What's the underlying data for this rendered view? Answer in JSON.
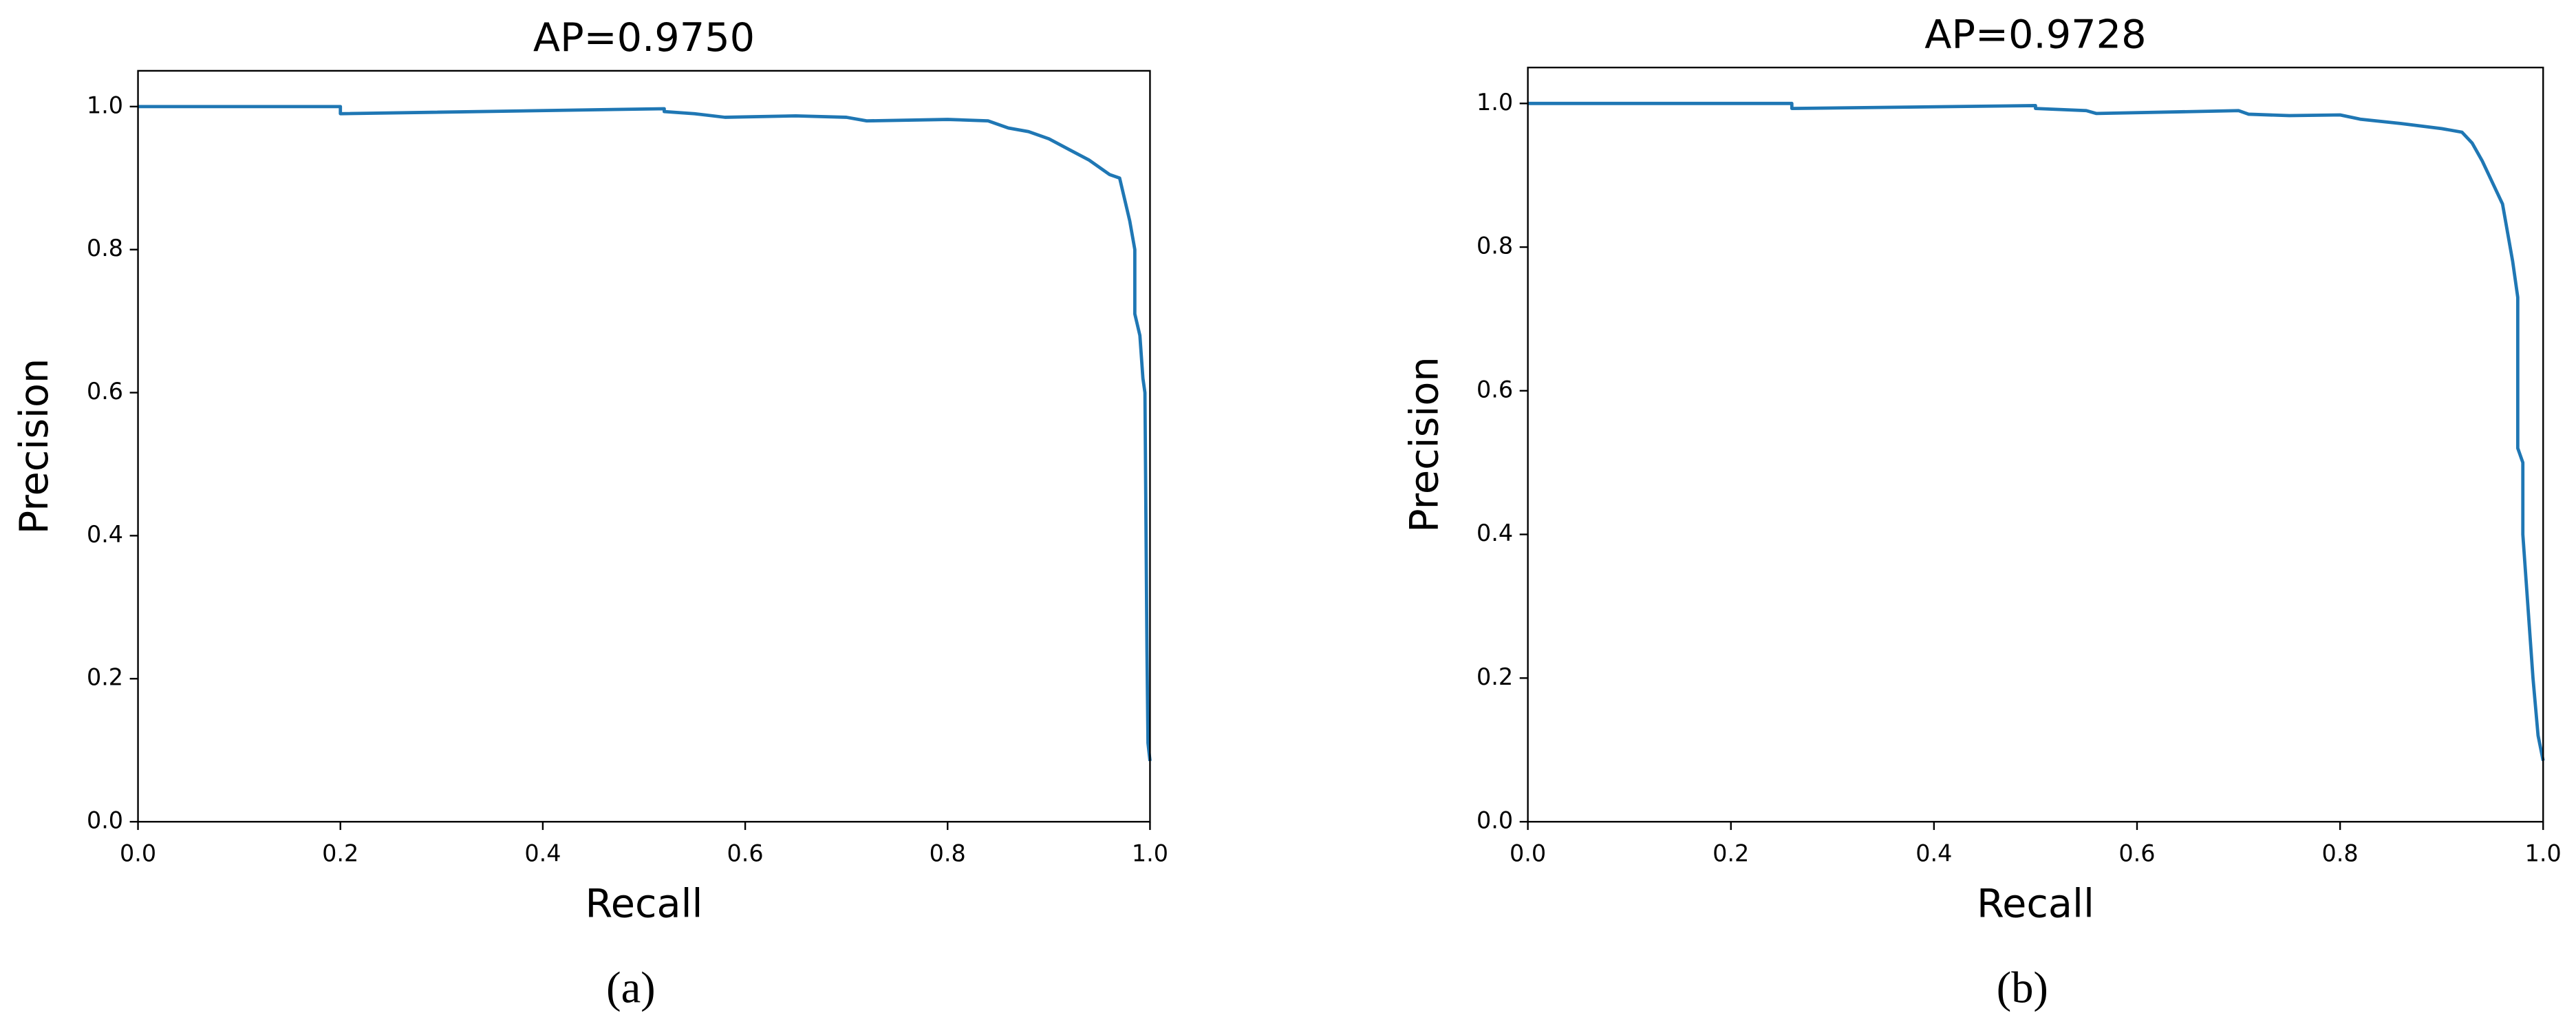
{
  "chart_data": [
    {
      "type": "line",
      "title": "AP=0.9750",
      "x_label": "Recall",
      "y_label": "Precision",
      "panel_label": "(a)",
      "xlim": [
        0,
        1
      ],
      "ylim": [
        0,
        1.05
      ],
      "xticks": [
        {
          "value": 0,
          "label": "0.0"
        },
        0.2,
        0.4,
        0.6,
        0.8,
        {
          "value": 1,
          "label": "1.0"
        }
      ],
      "yticks": [
        {
          "value": 0,
          "label": "0.0"
        },
        0.2,
        0.4,
        0.6,
        0.8,
        {
          "value": 1,
          "label": "1.0"
        }
      ],
      "series": [
        {
          "color": "#1f77b4",
          "x": [
            0,
            0.2,
            0.2,
            0.52,
            0.52,
            0.55,
            0.58,
            0.65,
            0.7,
            0.72,
            0.8,
            0.84,
            0.86,
            0.88,
            0.9,
            0.92,
            0.94,
            0.96,
            0.97,
            0.975,
            0.98,
            0.985,
            0.985,
            0.99,
            0.993,
            0.995,
            0.997,
            0.998,
            1.0
          ],
          "values": [
            1.0,
            1.0,
            0.99,
            0.997,
            0.993,
            0.99,
            0.985,
            0.987,
            0.985,
            0.98,
            0.982,
            0.98,
            0.97,
            0.965,
            0.955,
            0.94,
            0.925,
            0.905,
            0.9,
            0.87,
            0.84,
            0.8,
            0.71,
            0.68,
            0.62,
            0.6,
            0.24,
            0.11,
            0.085
          ]
        }
      ]
    },
    {
      "type": "line",
      "title": "AP=0.9728",
      "x_label": "Recall",
      "y_label": "Precision",
      "panel_label": "(b)",
      "xlim": [
        0,
        1
      ],
      "ylim": [
        0,
        1.05
      ],
      "xticks": [
        {
          "value": 0,
          "label": "0.0"
        },
        0.2,
        0.4,
        0.6,
        0.8,
        {
          "value": 1,
          "label": "1.0"
        }
      ],
      "yticks": [
        {
          "value": 0,
          "label": "0.0"
        },
        0.2,
        0.4,
        0.6,
        0.8,
        {
          "value": 1,
          "label": "1.0"
        }
      ],
      "series": [
        {
          "color": "#1f77b4",
          "x": [
            0,
            0.26,
            0.26,
            0.5,
            0.5,
            0.55,
            0.56,
            0.7,
            0.71,
            0.75,
            0.8,
            0.82,
            0.86,
            0.9,
            0.92,
            0.93,
            0.94,
            0.95,
            0.96,
            0.965,
            0.97,
            0.975,
            0.975,
            0.98,
            0.98,
            0.985,
            0.99,
            0.995,
            1.0
          ],
          "values": [
            1.0,
            1.0,
            0.993,
            0.997,
            0.993,
            0.99,
            0.986,
            0.99,
            0.985,
            0.983,
            0.984,
            0.978,
            0.972,
            0.965,
            0.96,
            0.945,
            0.92,
            0.89,
            0.86,
            0.82,
            0.78,
            0.73,
            0.52,
            0.5,
            0.4,
            0.3,
            0.2,
            0.12,
            0.085
          ]
        }
      ]
    }
  ]
}
